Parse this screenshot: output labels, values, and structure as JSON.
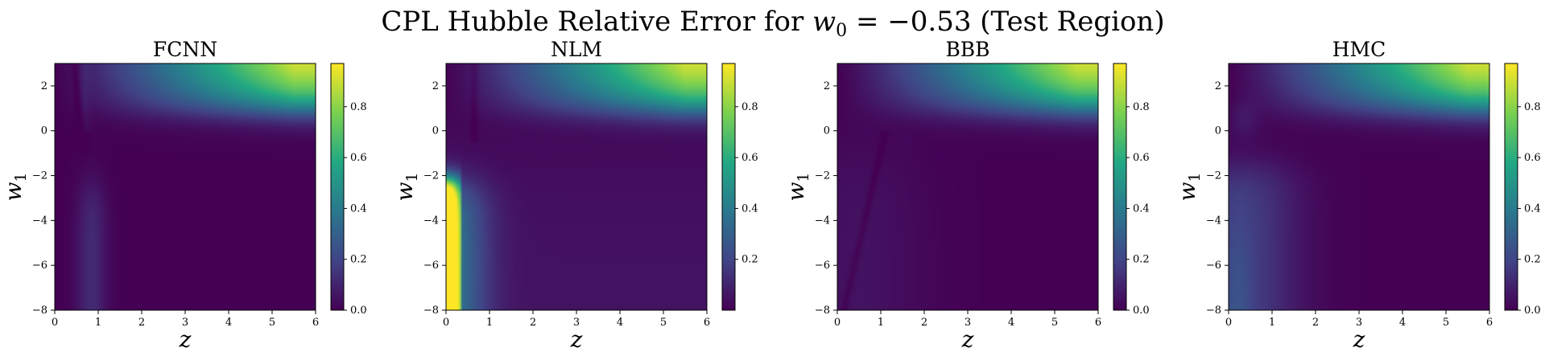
{
  "chart_data": {
    "type": "heatmap",
    "title": "CPL Hubble Relative Error for w₀ = −0.53 (Test Region)",
    "title_parts": {
      "prefix": "CPL Hubble Relative Error for ",
      "var": "w",
      "var_sub": "0",
      "equals": " = −0.53",
      "suffix": " (Test Region)"
    },
    "xlabel": "z",
    "ylabel": {
      "var": "w",
      "sub": "1"
    },
    "xlim": [
      0,
      6
    ],
    "ylim": [
      -8,
      3
    ],
    "xticks": [
      "0",
      "1",
      "2",
      "3",
      "4",
      "5",
      "6"
    ],
    "yticks": [
      "−8",
      "−6",
      "−4",
      "−2",
      "0",
      "2"
    ],
    "xtick_values": [
      0,
      1,
      2,
      3,
      4,
      5,
      6
    ],
    "ytick_values": [
      -8,
      -6,
      -4,
      -2,
      0,
      2
    ],
    "colormap": "viridis",
    "colormap_colors": [
      "#440154",
      "#414487",
      "#2a788e",
      "#22a884",
      "#7ad151",
      "#fde725"
    ],
    "panels": [
      {
        "title": "FCNN",
        "clim": [
          0,
          0.97
        ],
        "cbar_ticks": [
          "0.0",
          "0.2",
          "0.4",
          "0.6",
          "0.8"
        ],
        "cbar_tick_values": [
          0,
          0.2,
          0.4,
          0.6,
          0.8
        ],
        "variant": "fcnn"
      },
      {
        "title": "NLM",
        "clim": [
          0,
          0.97
        ],
        "cbar_ticks": [
          "0.2",
          "0.4",
          "0.6",
          "0.8"
        ],
        "cbar_tick_values": [
          0.2,
          0.4,
          0.6,
          0.8
        ],
        "variant": "nlm"
      },
      {
        "title": "BBB",
        "clim": [
          0,
          0.97
        ],
        "cbar_ticks": [
          "0.0",
          "0.2",
          "0.4",
          "0.6",
          "0.8"
        ],
        "cbar_tick_values": [
          0,
          0.2,
          0.4,
          0.6,
          0.8
        ],
        "variant": "bbb"
      },
      {
        "title": "HMC",
        "clim": [
          0,
          0.97
        ],
        "cbar_ticks": [
          "0.0",
          "0.2",
          "0.4",
          "0.6",
          "0.8"
        ],
        "cbar_tick_values": [
          0,
          0.2,
          0.4,
          0.6,
          0.8
        ],
        "variant": "hmc"
      }
    ]
  }
}
